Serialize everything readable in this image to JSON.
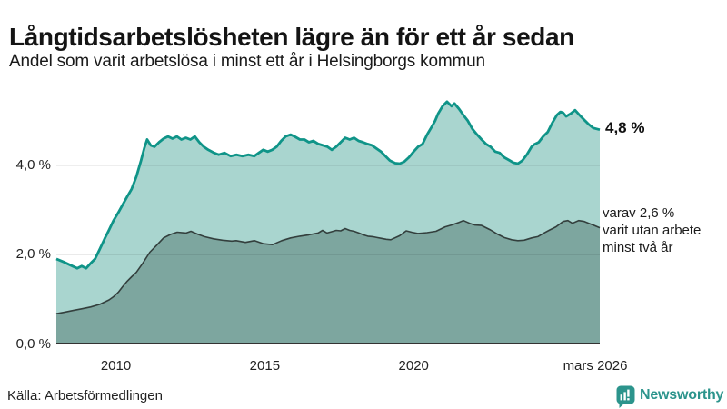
{
  "header": {
    "title": "Långtidsarbetslösheten lägre än för ett år sedan",
    "subtitle": "Andel som varit arbetslösa i minst ett år i Helsingborgs kommun"
  },
  "chart_data": {
    "type": "area",
    "title": "Långtidsarbetslösheten lägre än för ett år sedan",
    "subtitle": "Andel som varit arbetslösa i minst ett år i Helsingborgs kommun",
    "xlim": [
      2008,
      2026.25
    ],
    "ylim": [
      0,
      5.57
    ],
    "grid": "horizontal",
    "legend": "none",
    "x_ticks": [
      {
        "v": 2010,
        "label": "2010"
      },
      {
        "v": 2015,
        "label": "2015"
      },
      {
        "v": 2020,
        "label": "2020"
      },
      {
        "v": 2026.25,
        "label": "mars 2026"
      }
    ],
    "y_ticks": [
      {
        "v": 0,
        "label": "0,0 %"
      },
      {
        "v": 2,
        "label": "2,0 %"
      },
      {
        "v": 4,
        "label": "4,0 %"
      }
    ],
    "series": [
      {
        "name": "arbetslösa minst ett år",
        "end_value_label": "4,8 %",
        "line_color": "#0f9488",
        "fill_color": "#a9d5cf",
        "line_width": 2.8,
        "points": [
          [
            2008.0,
            1.9
          ],
          [
            2008.25,
            1.83
          ],
          [
            2008.5,
            1.75
          ],
          [
            2008.7,
            1.69
          ],
          [
            2008.85,
            1.74
          ],
          [
            2009.0,
            1.69
          ],
          [
            2009.15,
            1.8
          ],
          [
            2009.3,
            1.9
          ],
          [
            2009.46,
            2.12
          ],
          [
            2009.62,
            2.35
          ],
          [
            2009.77,
            2.55
          ],
          [
            2009.92,
            2.76
          ],
          [
            2010.08,
            2.94
          ],
          [
            2010.23,
            3.12
          ],
          [
            2010.38,
            3.3
          ],
          [
            2010.53,
            3.47
          ],
          [
            2010.69,
            3.75
          ],
          [
            2010.84,
            4.1
          ],
          [
            2010.95,
            4.38
          ],
          [
            2011.05,
            4.58
          ],
          [
            2011.17,
            4.45
          ],
          [
            2011.3,
            4.42
          ],
          [
            2011.45,
            4.52
          ],
          [
            2011.6,
            4.6
          ],
          [
            2011.75,
            4.65
          ],
          [
            2011.9,
            4.6
          ],
          [
            2012.05,
            4.65
          ],
          [
            2012.2,
            4.58
          ],
          [
            2012.35,
            4.62
          ],
          [
            2012.5,
            4.58
          ],
          [
            2012.65,
            4.65
          ],
          [
            2012.8,
            4.52
          ],
          [
            2012.95,
            4.42
          ],
          [
            2013.1,
            4.35
          ],
          [
            2013.3,
            4.28
          ],
          [
            2013.45,
            4.24
          ],
          [
            2013.65,
            4.28
          ],
          [
            2013.85,
            4.21
          ],
          [
            2014.05,
            4.24
          ],
          [
            2014.25,
            4.21
          ],
          [
            2014.45,
            4.24
          ],
          [
            2014.65,
            4.21
          ],
          [
            2014.8,
            4.28
          ],
          [
            2014.95,
            4.35
          ],
          [
            2015.1,
            4.31
          ],
          [
            2015.25,
            4.35
          ],
          [
            2015.4,
            4.42
          ],
          [
            2015.55,
            4.55
          ],
          [
            2015.7,
            4.65
          ],
          [
            2015.87,
            4.69
          ],
          [
            2016.0,
            4.65
          ],
          [
            2016.18,
            4.58
          ],
          [
            2016.33,
            4.58
          ],
          [
            2016.48,
            4.52
          ],
          [
            2016.63,
            4.55
          ],
          [
            2016.8,
            4.48
          ],
          [
            2016.95,
            4.45
          ],
          [
            2017.1,
            4.42
          ],
          [
            2017.25,
            4.35
          ],
          [
            2017.4,
            4.42
          ],
          [
            2017.55,
            4.52
          ],
          [
            2017.7,
            4.62
          ],
          [
            2017.85,
            4.58
          ],
          [
            2018.0,
            4.62
          ],
          [
            2018.15,
            4.55
          ],
          [
            2018.3,
            4.52
          ],
          [
            2018.45,
            4.48
          ],
          [
            2018.6,
            4.45
          ],
          [
            2018.75,
            4.38
          ],
          [
            2018.9,
            4.31
          ],
          [
            2019.05,
            4.21
          ],
          [
            2019.2,
            4.11
          ],
          [
            2019.38,
            4.05
          ],
          [
            2019.53,
            4.04
          ],
          [
            2019.68,
            4.08
          ],
          [
            2019.84,
            4.18
          ],
          [
            2020.0,
            4.31
          ],
          [
            2020.15,
            4.42
          ],
          [
            2020.3,
            4.48
          ],
          [
            2020.45,
            4.69
          ],
          [
            2020.6,
            4.86
          ],
          [
            2020.72,
            5.0
          ],
          [
            2020.82,
            5.16
          ],
          [
            2020.97,
            5.33
          ],
          [
            2021.12,
            5.43
          ],
          [
            2021.27,
            5.33
          ],
          [
            2021.37,
            5.39
          ],
          [
            2021.52,
            5.27
          ],
          [
            2021.67,
            5.13
          ],
          [
            2021.82,
            5.0
          ],
          [
            2021.97,
            4.82
          ],
          [
            2022.13,
            4.69
          ],
          [
            2022.28,
            4.58
          ],
          [
            2022.43,
            4.48
          ],
          [
            2022.58,
            4.42
          ],
          [
            2022.74,
            4.31
          ],
          [
            2022.89,
            4.28
          ],
          [
            2023.04,
            4.18
          ],
          [
            2023.2,
            4.12
          ],
          [
            2023.35,
            4.06
          ],
          [
            2023.5,
            4.04
          ],
          [
            2023.65,
            4.11
          ],
          [
            2023.8,
            4.24
          ],
          [
            2023.96,
            4.42
          ],
          [
            2024.05,
            4.47
          ],
          [
            2024.2,
            4.52
          ],
          [
            2024.35,
            4.65
          ],
          [
            2024.5,
            4.75
          ],
          [
            2024.66,
            4.96
          ],
          [
            2024.81,
            5.13
          ],
          [
            2024.93,
            5.2
          ],
          [
            2025.02,
            5.18
          ],
          [
            2025.12,
            5.1
          ],
          [
            2025.27,
            5.16
          ],
          [
            2025.42,
            5.24
          ],
          [
            2025.57,
            5.13
          ],
          [
            2025.73,
            5.02
          ],
          [
            2025.88,
            4.92
          ],
          [
            2026.03,
            4.84
          ],
          [
            2026.25,
            4.8
          ]
        ]
      },
      {
        "name": "utan arbete minst två år",
        "end_value_label": "2,6 %",
        "line_color": "#333f3d",
        "fill_color": "#7da69f",
        "line_width": 1.6,
        "points": [
          [
            2008.0,
            0.67
          ],
          [
            2008.25,
            0.7
          ],
          [
            2008.55,
            0.74
          ],
          [
            2008.85,
            0.78
          ],
          [
            2009.15,
            0.82
          ],
          [
            2009.46,
            0.88
          ],
          [
            2009.77,
            0.98
          ],
          [
            2009.92,
            1.05
          ],
          [
            2010.08,
            1.15
          ],
          [
            2010.23,
            1.28
          ],
          [
            2010.38,
            1.4
          ],
          [
            2010.53,
            1.5
          ],
          [
            2010.69,
            1.6
          ],
          [
            2010.9,
            1.8
          ],
          [
            2011.14,
            2.05
          ],
          [
            2011.36,
            2.2
          ],
          [
            2011.6,
            2.37
          ],
          [
            2011.84,
            2.45
          ],
          [
            2012.06,
            2.5
          ],
          [
            2012.36,
            2.48
          ],
          [
            2012.52,
            2.52
          ],
          [
            2012.76,
            2.45
          ],
          [
            2012.97,
            2.4
          ],
          [
            2013.28,
            2.35
          ],
          [
            2013.58,
            2.32
          ],
          [
            2013.89,
            2.3
          ],
          [
            2014.04,
            2.31
          ],
          [
            2014.35,
            2.27
          ],
          [
            2014.65,
            2.31
          ],
          [
            2014.96,
            2.24
          ],
          [
            2015.26,
            2.22
          ],
          [
            2015.57,
            2.31
          ],
          [
            2015.87,
            2.37
          ],
          [
            2016.18,
            2.41
          ],
          [
            2016.48,
            2.44
          ],
          [
            2016.79,
            2.48
          ],
          [
            2016.94,
            2.54
          ],
          [
            2017.09,
            2.48
          ],
          [
            2017.24,
            2.51
          ],
          [
            2017.4,
            2.54
          ],
          [
            2017.55,
            2.53
          ],
          [
            2017.7,
            2.58
          ],
          [
            2017.85,
            2.54
          ],
          [
            2018.0,
            2.52
          ],
          [
            2018.16,
            2.48
          ],
          [
            2018.31,
            2.44
          ],
          [
            2018.46,
            2.41
          ],
          [
            2018.62,
            2.4
          ],
          [
            2018.77,
            2.38
          ],
          [
            2018.92,
            2.36
          ],
          [
            2019.08,
            2.34
          ],
          [
            2019.23,
            2.33
          ],
          [
            2019.53,
            2.42
          ],
          [
            2019.75,
            2.53
          ],
          [
            2019.93,
            2.5
          ],
          [
            2020.14,
            2.47
          ],
          [
            2020.45,
            2.49
          ],
          [
            2020.75,
            2.52
          ],
          [
            2021.06,
            2.62
          ],
          [
            2021.27,
            2.66
          ],
          [
            2021.52,
            2.72
          ],
          [
            2021.67,
            2.76
          ],
          [
            2021.88,
            2.7
          ],
          [
            2022.06,
            2.66
          ],
          [
            2022.28,
            2.65
          ],
          [
            2022.58,
            2.55
          ],
          [
            2022.83,
            2.45
          ],
          [
            2023.04,
            2.38
          ],
          [
            2023.29,
            2.33
          ],
          [
            2023.5,
            2.31
          ],
          [
            2023.71,
            2.32
          ],
          [
            2023.96,
            2.37
          ],
          [
            2024.17,
            2.4
          ],
          [
            2024.35,
            2.47
          ],
          [
            2024.57,
            2.55
          ],
          [
            2024.78,
            2.62
          ],
          [
            2025.02,
            2.74
          ],
          [
            2025.18,
            2.76
          ],
          [
            2025.33,
            2.7
          ],
          [
            2025.54,
            2.76
          ],
          [
            2025.73,
            2.74
          ],
          [
            2025.88,
            2.7
          ],
          [
            2026.03,
            2.66
          ],
          [
            2026.25,
            2.6
          ]
        ]
      }
    ],
    "annotations": {
      "primary": "4,8 %",
      "secondary": "varav 2,6 %\nvarit utan arbete\nminst två år"
    }
  },
  "footer": {
    "source": "Källa: Arbetsförmedlingen",
    "brand": "Newsworthy"
  },
  "colors": {
    "accent_teal": "#0f9488",
    "fill_light": "#a9d5cf",
    "fill_dark": "#7da69f",
    "dark_line": "#333f3d",
    "gridline": "#d9d9d9",
    "axis_line": "#333333",
    "text": "#1a1a1a",
    "brand_teal": "#2c948c"
  }
}
